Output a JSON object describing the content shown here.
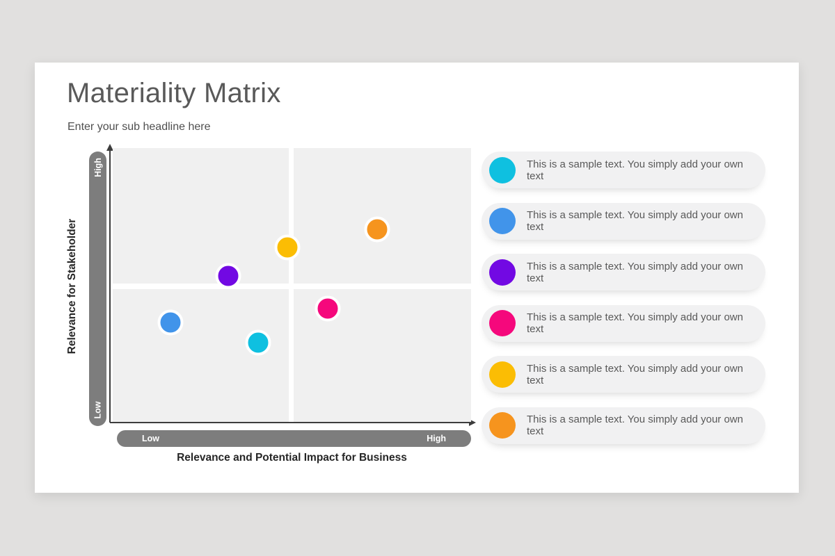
{
  "slide": {
    "title": "Materiality Matrix",
    "subtitle": "Enter your sub headline here"
  },
  "matrix": {
    "y_axis": {
      "label": "Relevance for Stakeholder",
      "low": "Low",
      "high": "High"
    },
    "x_axis": {
      "label": "Relevance and Potential Impact for Business",
      "low": "Low",
      "high": "High"
    }
  },
  "legend": [
    {
      "name": "cyan",
      "color": "#0fc0e0",
      "text": "This is a sample text. You simply add your own text"
    },
    {
      "name": "blue",
      "color": "#4194ea",
      "text": "This is a sample text. You simply add your own text"
    },
    {
      "name": "purple",
      "color": "#7209e3",
      "text": "This is a sample text. You simply add your own text"
    },
    {
      "name": "pink",
      "color": "#f5087c",
      "text": "This is a sample text. You simply add your own text"
    },
    {
      "name": "yellow",
      "color": "#fbbd04",
      "text": "This is a sample text. You simply add your own text"
    },
    {
      "name": "orange",
      "color": "#f6941e",
      "text": "This is a sample text. You simply add your own text"
    }
  ],
  "chart_data": {
    "type": "scatter",
    "title": "Materiality Matrix",
    "xlabel": "Relevance and Potential Impact for Business",
    "ylabel": "Relevance for Stakeholder",
    "xlim": [
      0,
      100
    ],
    "ylim": [
      0,
      100
    ],
    "grid": "2x2 quadrants divided by white gap at x=50, y=50",
    "legend_position": "right",
    "points": [
      {
        "name": "orange",
        "color": "#f6941e",
        "x": 73.8,
        "y": 70.3
      },
      {
        "name": "yellow",
        "color": "#fbbd04",
        "x": 48.7,
        "y": 63.7
      },
      {
        "name": "purple",
        "color": "#7209e3",
        "x": 32.2,
        "y": 53.3
      },
      {
        "name": "pink",
        "color": "#f5087c",
        "x": 60.0,
        "y": 41.4
      },
      {
        "name": "blue",
        "color": "#4194ea",
        "x": 16.1,
        "y": 36.3
      },
      {
        "name": "cyan",
        "color": "#0fc0e0",
        "x": 40.6,
        "y": 28.9
      }
    ]
  },
  "colors": {
    "page_background": "#e1e0df",
    "slide_background": "#ffffff",
    "quadrant_fill": "#f0f0f0",
    "axis_bar": "#7d7d7d",
    "axis_arrow": "#3d3d3d",
    "title_text": "#595959",
    "legend_pill": "#f1f1f2"
  }
}
